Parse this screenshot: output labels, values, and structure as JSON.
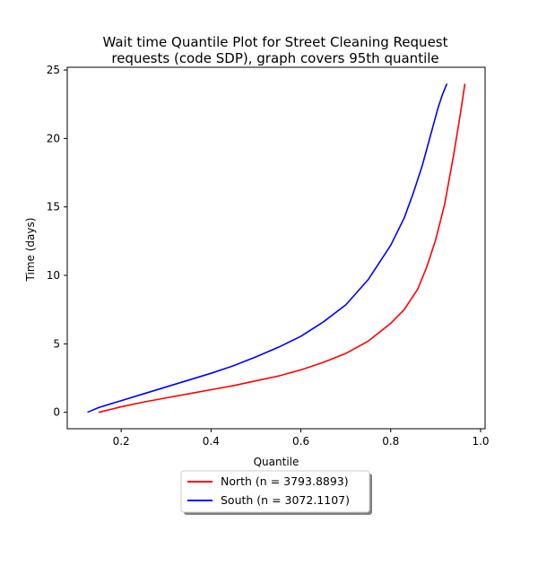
{
  "chart_data": {
    "type": "line",
    "title": [
      "Wait time Quantile Plot for Street Cleaning Request",
      "requests (code SDP), graph covers 95th quantile"
    ],
    "xlabel": "Quantile",
    "ylabel": "Time (days)",
    "xlim": [
      0.08,
      1.01
    ],
    "ylim": [
      -1.2,
      25.2
    ],
    "xticks": [
      0.2,
      0.4,
      0.6,
      0.8,
      1.0
    ],
    "xtick_labels": [
      "0.2",
      "0.4",
      "0.6",
      "0.8",
      "1.0"
    ],
    "yticks": [
      0,
      5,
      10,
      15,
      20,
      25
    ],
    "ytick_labels": [
      "0",
      "5",
      "10",
      "15",
      "20",
      "25"
    ],
    "grid": false,
    "legend_position": "below-center",
    "series": [
      {
        "name": "North (n = 3793.8893)",
        "color": "#ff0000",
        "x": [
          0.15,
          0.2,
          0.25,
          0.3,
          0.35,
          0.4,
          0.45,
          0.5,
          0.55,
          0.6,
          0.65,
          0.7,
          0.75,
          0.8,
          0.83,
          0.86,
          0.88,
          0.9,
          0.92,
          0.94,
          0.955,
          0.965
        ],
        "y": [
          0.0,
          0.4,
          0.75,
          1.05,
          1.35,
          1.65,
          1.95,
          2.3,
          2.65,
          3.1,
          3.65,
          4.3,
          5.2,
          6.5,
          7.5,
          9.0,
          10.6,
          12.6,
          15.2,
          18.8,
          21.8,
          24.0
        ]
      },
      {
        "name": "South (n = 3072.1107)",
        "color": "#0000ff",
        "x": [
          0.125,
          0.15,
          0.2,
          0.25,
          0.3,
          0.35,
          0.4,
          0.45,
          0.5,
          0.55,
          0.6,
          0.65,
          0.7,
          0.75,
          0.8,
          0.83,
          0.85,
          0.87,
          0.89,
          0.905,
          0.915,
          0.925
        ],
        "y": [
          0.0,
          0.35,
          0.85,
          1.35,
          1.85,
          2.35,
          2.85,
          3.4,
          4.05,
          4.75,
          5.55,
          6.6,
          7.85,
          9.7,
          12.2,
          14.2,
          16.0,
          18.0,
          20.4,
          22.2,
          23.2,
          24.0
        ]
      }
    ]
  }
}
